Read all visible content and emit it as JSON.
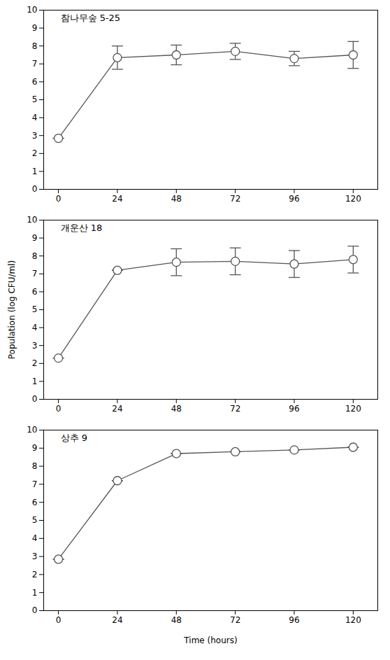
{
  "chart_data": [
    {
      "type": "line",
      "annotation": "참나무숲 5-25",
      "x": [
        0,
        24,
        48,
        72,
        96,
        120
      ],
      "values": [
        2.85,
        7.35,
        7.5,
        7.7,
        7.3,
        7.5
      ],
      "yerr": [
        0.0,
        0.65,
        0.55,
        0.45,
        0.4,
        0.75
      ],
      "color": "#555555",
      "marker": "circle",
      "xlim": [
        -6,
        130
      ],
      "xticks": [
        0,
        24,
        48,
        72,
        96,
        120
      ],
      "ylim": [
        0,
        10
      ],
      "yticks": [
        0,
        1,
        2,
        3,
        4,
        5,
        6,
        7,
        8,
        9,
        10
      ]
    },
    {
      "type": "line",
      "annotation": "개운산 18",
      "ylabel": "Population (log CFU/ml)",
      "x": [
        0,
        24,
        48,
        72,
        96,
        120
      ],
      "values": [
        2.3,
        7.2,
        7.65,
        7.7,
        7.55,
        7.8
      ],
      "yerr": [
        0.0,
        0.0,
        0.75,
        0.75,
        0.75,
        0.75
      ],
      "color": "#555555",
      "marker": "circle",
      "xlim": [
        -6,
        130
      ],
      "xticks": [
        0,
        24,
        48,
        72,
        96,
        120
      ],
      "ylim": [
        0,
        10
      ],
      "yticks": [
        0,
        1,
        2,
        3,
        4,
        5,
        6,
        7,
        8,
        9,
        10
      ]
    },
    {
      "type": "line",
      "annotation": "상추 9",
      "xlabel": "Time (hours)",
      "x": [
        0,
        24,
        48,
        72,
        96,
        120
      ],
      "values": [
        2.85,
        7.2,
        8.7,
        8.8,
        8.9,
        9.05
      ],
      "yerr": [
        0.0,
        0.0,
        0.0,
        0.0,
        0.0,
        0.0
      ],
      "color": "#555555",
      "marker": "circle",
      "xlim": [
        -6,
        130
      ],
      "xticks": [
        0,
        24,
        48,
        72,
        96,
        120
      ],
      "ylim": [
        0,
        10
      ],
      "yticks": [
        0,
        1,
        2,
        3,
        4,
        5,
        6,
        7,
        8,
        9,
        10
      ]
    }
  ]
}
